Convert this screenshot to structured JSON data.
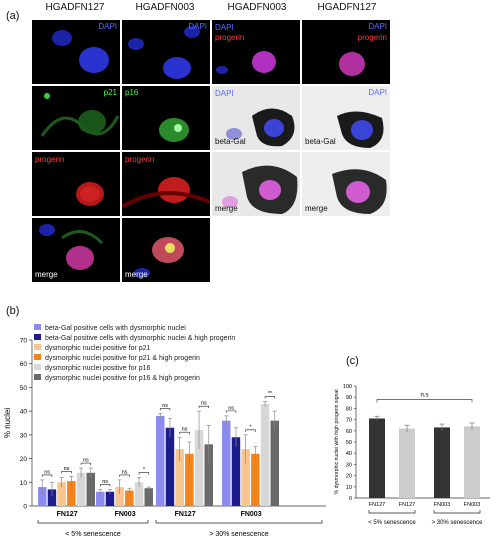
{
  "panel_a": {
    "letter": "(a)",
    "col_headers": [
      "HGADFN127",
      "HGADFN003",
      "HGADFN003",
      "HGADFN127"
    ],
    "labels": {
      "dapi": "DAPI",
      "p21": "p21",
      "p16": "p16",
      "progerin": "progerin",
      "merge": "merge",
      "betagal": "beta-Gal"
    }
  },
  "panel_b": {
    "letter": "(b)",
    "chart_data": {
      "type": "bar",
      "ylabel": "% nuclei",
      "ylim": [
        0,
        70
      ],
      "yticks": [
        0,
        10,
        20,
        30,
        40,
        50,
        60,
        70
      ],
      "categories": [
        "FN127",
        "FN003",
        "FN127",
        "FN003"
      ],
      "groups": [
        "< 5% senescence",
        "> 30% senescence"
      ],
      "series": [
        {
          "name": "beta-Gal positive cells with dysmorphic nuclei",
          "color": "#8b8bf0",
          "values": [
            8,
            6,
            38,
            36
          ],
          "err": [
            3,
            1,
            1,
            2
          ]
        },
        {
          "name": "beta-Gal positive cells with dysmorphic nuclei & high progerin",
          "color": "#1c1c8c",
          "values": [
            7,
            6,
            33,
            29
          ],
          "err": [
            3,
            1,
            4,
            4
          ]
        },
        {
          "name": "dysmorphic nuclei positive for p21",
          "color": "#f7c590",
          "values": [
            10,
            8,
            24,
            24
          ],
          "err": [
            2,
            3,
            5,
            6
          ]
        },
        {
          "name": "dysmorphic nuclei positive for p21 & high progerin",
          "color": "#f2841c",
          "values": [
            10.5,
            6.5,
            22,
            22
          ],
          "err": [
            2,
            1,
            5,
            3
          ]
        },
        {
          "name": "dysmorphic nuclei positive for p16",
          "color": "#d7d7d7",
          "values": [
            14,
            10,
            32,
            43
          ],
          "err": [
            2,
            2,
            8,
            1
          ]
        },
        {
          "name": "dysmorphic nuclei positive for p16 & high progerin",
          "color": "#6a6a6a",
          "values": [
            14,
            7.5,
            26,
            36
          ],
          "err": [
            2,
            0.5,
            8,
            4
          ]
        }
      ],
      "significance": [
        [
          "ns",
          "ns",
          "ns"
        ],
        [
          "ns",
          "ns",
          "*"
        ],
        [
          "ns",
          "ns",
          "ns"
        ],
        [
          "ns",
          "*",
          "**"
        ]
      ]
    }
  },
  "panel_c": {
    "letter": "(c)",
    "chart_data": {
      "type": "bar",
      "ylabel": "% dysmorphic nuclei with high progerin signal",
      "ylim": [
        0,
        100
      ],
      "yticks": [
        0,
        10,
        20,
        30,
        40,
        50,
        60,
        70,
        80,
        90,
        100
      ],
      "categories": [
        "FN127",
        "FN127",
        "FN003",
        "FN003"
      ],
      "values": [
        71,
        62,
        63,
        64
      ],
      "err": [
        2,
        3,
        3,
        3
      ],
      "colors": [
        "#333333",
        "#cccccc",
        "#333333",
        "#cccccc"
      ],
      "groups": [
        "< 5% senescence",
        "> 30% senescence"
      ],
      "significance": "n.s"
    }
  }
}
